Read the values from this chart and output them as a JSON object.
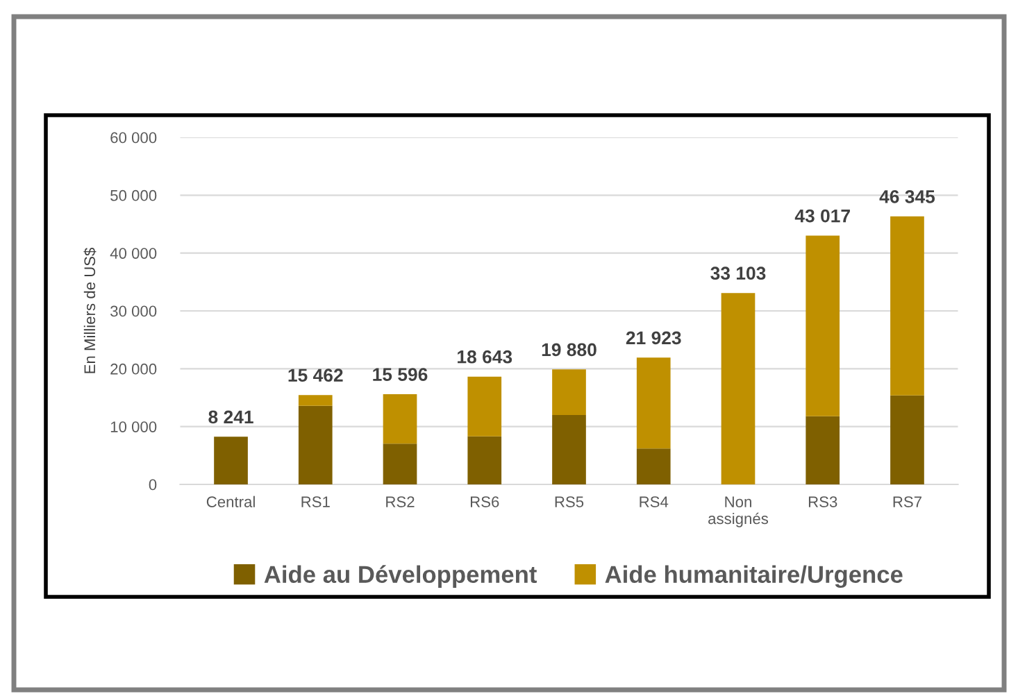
{
  "chart_data": {
    "type": "bar",
    "stacked": true,
    "ylabel": "En Milliers de US$",
    "categories": [
      "Central",
      "RS1",
      "RS2",
      "RS6",
      "RS5",
      "RS4",
      "Non\nassignés",
      "RS3",
      "RS7"
    ],
    "series": [
      {
        "name": "Aide au Développement",
        "color": "#7f6000",
        "values": [
          8241,
          13600,
          7050,
          8300,
          12000,
          6200,
          null,
          11800,
          15400
        ]
      },
      {
        "name": "Aide humanitaire/Urgence",
        "color": "#bf9000",
        "values": [
          null,
          1862,
          8546,
          10343,
          7880,
          15723,
          33103,
          31217,
          30945
        ]
      }
    ],
    "totals": [
      "8 241",
      "15 462",
      "15 596",
      "18 643",
      "19 880",
      "21 923",
      "33 103",
      "43 017",
      "46 345"
    ],
    "ylim": [
      0,
      60000
    ],
    "yticks": [
      0,
      {
        "value": 10000,
        "label": "10 000"
      },
      {
        "value": 20000,
        "label": "20 000"
      },
      {
        "value": 30000,
        "label": "30 000"
      },
      {
        "value": 40000,
        "label": "40 000"
      },
      {
        "value": 50000,
        "label": "50 000"
      },
      {
        "value": 60000,
        "label": "60 000"
      }
    ],
    "grid": "y",
    "legend": "bottom"
  }
}
